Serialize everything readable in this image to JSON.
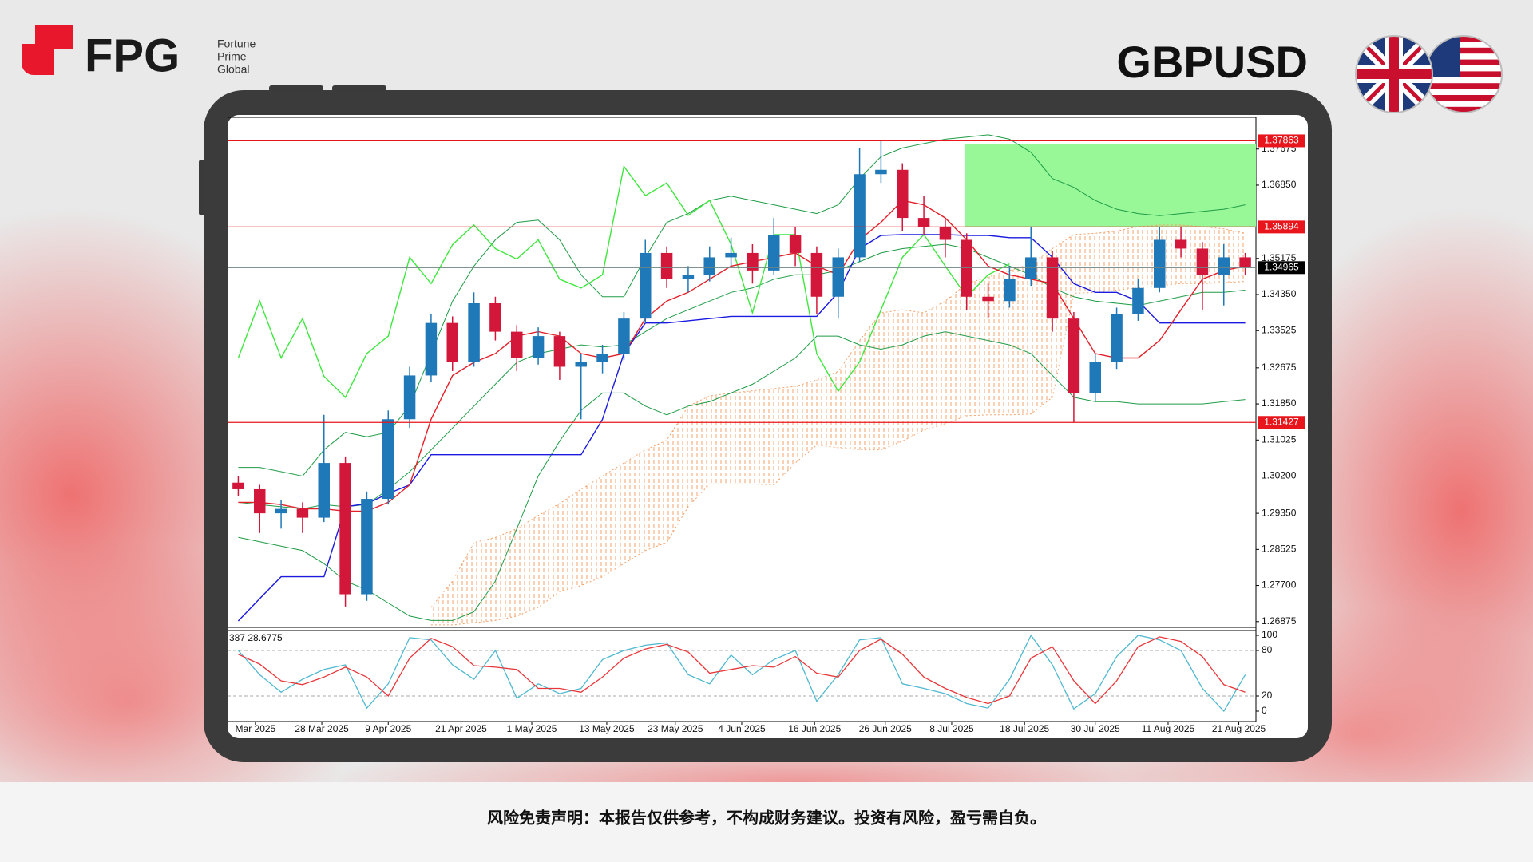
{
  "header": {
    "brand": "FPG",
    "tagline": [
      "Fortune",
      "Prime",
      "Global"
    ],
    "symbol": "GBPUSD"
  },
  "chart_data": {
    "type": "candlestick",
    "ylim": [
      1.2678,
      1.384
    ],
    "yticks": [
      1.37675,
      {
        "value": 1.3685,
        "label": "1.36850"
      },
      1.35175,
      {
        "value": 1.3435,
        "label": "1.34350"
      },
      1.33525,
      1.32675,
      {
        "value": 1.3185,
        "label": "1.31850"
      },
      1.31025,
      {
        "value": 1.302,
        "label": "1.30200"
      },
      {
        "value": 1.2935,
        "label": "1.29350"
      },
      1.28525,
      {
        "value": 1.277,
        "label": "1.27700"
      },
      1.26875
    ],
    "xticks": [
      {
        "value": 0.8,
        "label": "Mar 2025"
      },
      {
        "value": 3.9,
        "label": "28 Mar 2025"
      },
      {
        "value": 7.0,
        "label": "9 Apr 2025"
      },
      {
        "value": 10.4,
        "label": "21 Apr 2025"
      },
      {
        "value": 13.7,
        "label": "1 May 2025"
      },
      {
        "value": 17.2,
        "label": "13 May 2025"
      },
      {
        "value": 20.4,
        "label": "23 May 2025"
      },
      {
        "value": 23.5,
        "label": "4 Jun 2025"
      },
      {
        "value": 26.9,
        "label": "16 Jun 2025"
      },
      {
        "value": 30.2,
        "label": "26 Jun 2025"
      },
      {
        "value": 33.3,
        "label": "8 Jul 2025"
      },
      {
        "value": 36.7,
        "label": "18 Jul 2025"
      },
      {
        "value": 40.0,
        "label": "30 Jul 2025"
      },
      {
        "value": 43.4,
        "label": "11 Aug 2025"
      },
      {
        "value": 46.7,
        "label": "21 Aug 2025"
      }
    ],
    "up_color": "#1f78b8",
    "down_color": "#d3173a",
    "candles": [
      [
        1.3005,
        1.302,
        1.2975,
        1.299
      ],
      [
        1.299,
        1.3,
        1.289,
        1.2935
      ],
      [
        1.2935,
        1.2965,
        1.29,
        1.2945
      ],
      [
        1.2945,
        1.296,
        1.289,
        1.2925
      ],
      [
        1.2925,
        1.316,
        1.2915,
        1.305
      ],
      [
        1.305,
        1.3065,
        1.2722,
        1.275
      ],
      [
        1.275,
        1.2985,
        1.2735,
        1.2968
      ],
      [
        1.2968,
        1.317,
        1.2955,
        1.315
      ],
      [
        1.315,
        1.327,
        1.313,
        1.325
      ],
      [
        1.325,
        1.339,
        1.3235,
        1.337
      ],
      [
        1.337,
        1.3385,
        1.326,
        1.328
      ],
      [
        1.328,
        1.344,
        1.327,
        1.3415
      ],
      [
        1.3415,
        1.343,
        1.333,
        1.335
      ],
      [
        1.335,
        1.3365,
        1.326,
        1.329
      ],
      [
        1.329,
        1.336,
        1.3275,
        1.334
      ],
      [
        1.334,
        1.335,
        1.324,
        1.327
      ],
      [
        1.327,
        1.33,
        1.315,
        1.328
      ],
      [
        1.328,
        1.332,
        1.3255,
        1.33
      ],
      [
        1.33,
        1.3395,
        1.3285,
        1.338
      ],
      [
        1.338,
        1.356,
        1.337,
        1.353
      ],
      [
        1.353,
        1.3545,
        1.345,
        1.347
      ],
      [
        1.347,
        1.35,
        1.344,
        1.348
      ],
      [
        1.348,
        1.3545,
        1.3465,
        1.352
      ],
      [
        1.352,
        1.3565,
        1.35,
        1.353
      ],
      [
        1.353,
        1.355,
        1.346,
        1.349
      ],
      [
        1.349,
        1.361,
        1.348,
        1.357
      ],
      [
        1.357,
        1.359,
        1.35,
        1.353
      ],
      [
        1.353,
        1.3545,
        1.339,
        1.343
      ],
      [
        1.343,
        1.354,
        1.338,
        1.352
      ],
      [
        1.352,
        1.377,
        1.351,
        1.371
      ],
      [
        1.371,
        1.3786,
        1.369,
        1.372
      ],
      [
        1.372,
        1.3735,
        1.358,
        1.361
      ],
      [
        1.361,
        1.366,
        1.357,
        1.359
      ],
      [
        1.359,
        1.361,
        1.352,
        1.356
      ],
      [
        1.356,
        1.3575,
        1.34,
        1.343
      ],
      [
        1.343,
        1.346,
        1.338,
        1.342
      ],
      [
        1.342,
        1.35,
        1.3405,
        1.347
      ],
      [
        1.347,
        1.359,
        1.3455,
        1.352
      ],
      [
        1.352,
        1.3535,
        1.335,
        1.338
      ],
      [
        1.338,
        1.3395,
        1.3142,
        1.321
      ],
      [
        1.321,
        1.33,
        1.319,
        1.328
      ],
      [
        1.328,
        1.3405,
        1.3265,
        1.339
      ],
      [
        1.339,
        1.347,
        1.3375,
        1.345
      ],
      [
        1.345,
        1.359,
        1.344,
        1.356
      ],
      [
        1.356,
        1.359,
        1.352,
        1.354
      ],
      [
        1.354,
        1.3555,
        1.34,
        1.348
      ],
      [
        1.348,
        1.355,
        1.341,
        1.352
      ],
      [
        1.352,
        1.353,
        1.348,
        1.3497
      ]
    ],
    "zone": {
      "low": 1.35894,
      "high": 1.3778,
      "start": 33.9,
      "color": "#98f898"
    },
    "cloud": {
      "color": "#f2a36c",
      "upper": [
        null,
        null,
        null,
        null,
        null,
        null,
        null,
        null,
        null,
        1.272,
        1.278,
        1.2868,
        1.288,
        1.29,
        1.293,
        1.2957,
        1.299,
        1.302,
        1.305,
        1.308,
        1.3102,
        1.318,
        1.3203,
        1.321,
        1.3215,
        1.322,
        1.3225,
        1.324,
        1.3259,
        1.333,
        1.3393,
        1.34,
        1.3393,
        1.342,
        1.346,
        1.3475,
        1.349,
        1.3505,
        1.354,
        1.3572,
        1.3575,
        1.358,
        1.359,
        1.3594,
        1.3594,
        1.359,
        1.3585,
        1.3575
      ],
      "lower": [
        null,
        null,
        null,
        null,
        null,
        null,
        null,
        null,
        null,
        1.268,
        1.268,
        1.2685,
        1.269,
        1.27,
        1.272,
        1.2756,
        1.277,
        1.279,
        1.282,
        1.285,
        1.2868,
        1.295,
        1.3002,
        1.3002,
        1.3002,
        1.3,
        1.305,
        1.3091,
        1.3085,
        1.308,
        1.308,
        1.31,
        1.3125,
        1.314,
        1.3158,
        1.316,
        1.316,
        1.3162,
        1.32,
        1.3438,
        1.344,
        1.3445,
        1.345,
        1.3455,
        1.346,
        1.346,
        1.3462,
        1.3465
      ]
    },
    "lines": [
      {
        "color": "#1e9c46",
        "width": 1,
        "values": [
          1.304,
          1.304,
          1.303,
          1.302,
          1.308,
          1.312,
          1.311,
          1.312,
          1.318,
          1.33,
          1.342,
          1.35,
          1.356,
          1.36,
          1.3605,
          1.356,
          1.348,
          1.343,
          1.343,
          1.352,
          1.36,
          1.362,
          1.365,
          1.366,
          1.365,
          1.364,
          1.363,
          1.362,
          1.364,
          1.37,
          1.375,
          1.377,
          1.378,
          1.379,
          1.3795,
          1.38,
          1.379,
          1.376,
          1.37,
          1.368,
          1.365,
          1.363,
          1.362,
          1.3615,
          1.362,
          1.3625,
          1.363,
          1.364
        ]
      },
      {
        "color": "#1e9c46",
        "width": 1,
        "values": [
          1.296,
          1.2955,
          1.295,
          1.2945,
          1.2955,
          1.295,
          1.2955,
          1.299,
          1.303,
          1.308,
          1.313,
          1.318,
          1.323,
          1.328,
          1.33,
          1.331,
          1.332,
          1.3315,
          1.332,
          1.335,
          1.338,
          1.34,
          1.342,
          1.344,
          1.345,
          1.347,
          1.348,
          1.348,
          1.349,
          1.351,
          1.353,
          1.354,
          1.3545,
          1.355,
          1.354,
          1.352,
          1.35,
          1.348,
          1.345,
          1.343,
          1.342,
          1.3415,
          1.341,
          1.342,
          1.343,
          1.344,
          1.344,
          1.3445
        ]
      },
      {
        "color": "#1e9c46",
        "width": 1,
        "values": [
          1.288,
          1.287,
          1.286,
          1.285,
          1.282,
          1.278,
          1.276,
          1.273,
          1.27,
          1.269,
          1.269,
          1.271,
          1.278,
          1.29,
          1.302,
          1.31,
          1.317,
          1.321,
          1.321,
          1.318,
          1.316,
          1.318,
          1.319,
          1.321,
          1.323,
          1.326,
          1.329,
          1.334,
          1.334,
          1.332,
          1.331,
          1.332,
          1.334,
          1.335,
          1.334,
          1.333,
          1.332,
          1.33,
          1.325,
          1.32,
          1.319,
          1.319,
          1.3185,
          1.3185,
          1.3185,
          1.3185,
          1.319,
          1.3195
        ]
      },
      {
        "color": "#3de83d",
        "width": 1.4,
        "values": [
          1.329,
          1.342,
          1.329,
          1.338,
          1.3248,
          1.32,
          1.33,
          1.334,
          1.352,
          1.346,
          1.3549,
          1.3594,
          1.354,
          1.3516,
          1.356,
          1.347,
          1.345,
          1.348,
          1.3728,
          1.3661,
          1.369,
          1.3616,
          1.365,
          1.355,
          1.3393,
          1.3572,
          1.3572,
          1.33,
          1.3214,
          1.3281,
          1.34,
          1.352,
          1.3572,
          1.35,
          1.343,
          1.348,
          1.3505,
          null,
          null,
          null,
          null,
          null,
          null,
          null,
          null,
          null,
          null,
          null
        ]
      },
      {
        "color": "#1a1ae0",
        "width": 1.4,
        "values": [
          1.2689,
          1.274,
          1.279,
          1.279,
          1.279,
          1.295,
          1.2957,
          1.298,
          1.3,
          1.3069,
          1.3069,
          1.3069,
          1.3069,
          1.3069,
          1.3069,
          1.3069,
          1.3069,
          1.315,
          1.33,
          1.337,
          1.337,
          1.3375,
          1.338,
          1.3385,
          1.3385,
          1.3385,
          1.3385,
          1.3385,
          1.344,
          1.354,
          1.357,
          1.3572,
          1.3572,
          1.3572,
          1.357,
          1.357,
          1.3565,
          1.3565,
          1.352,
          1.346,
          1.344,
          1.344,
          1.342,
          1.337,
          1.337,
          1.337,
          1.337,
          1.337
        ]
      },
      {
        "color": "#e3202a",
        "width": 1.4,
        "values": [
          1.296,
          1.296,
          1.2955,
          1.2945,
          1.2945,
          1.294,
          1.294,
          1.296,
          1.3,
          1.315,
          1.325,
          1.328,
          1.33,
          1.334,
          1.335,
          1.334,
          1.33,
          1.329,
          1.33,
          1.338,
          1.342,
          1.344,
          1.347,
          1.35,
          1.351,
          1.352,
          1.353,
          1.35,
          1.348,
          1.356,
          1.36,
          1.365,
          1.364,
          1.361,
          1.356,
          1.35,
          1.348,
          1.347,
          1.346,
          1.338,
          1.33,
          1.329,
          1.329,
          1.333,
          1.34,
          1.347,
          1.349,
          1.35
        ]
      }
    ],
    "levels": [
      {
        "value": 1.37863,
        "color": "#e8161c",
        "label_color": "#e8161c"
      },
      {
        "value": 1.35894,
        "color": "#e8161c",
        "label_color": "#e8161c"
      },
      {
        "value": 1.31427,
        "color": "#e8161c",
        "label_color": "#e8161c"
      },
      {
        "value": 1.34965,
        "color": "#6f8383",
        "label_color": "#000000"
      }
    ],
    "oscillator": {
      "label": "387 28.6775",
      "ylim": [
        0,
        100
      ],
      "yticks": [
        100,
        80,
        20,
        0
      ],
      "levels": [
        80,
        20
      ],
      "lines": [
        {
          "color": "#4fb8d0",
          "values": [
            80,
            48,
            25,
            42,
            55,
            61,
            4,
            36,
            97,
            94,
            61,
            42,
            80,
            17,
            36,
            23,
            30,
            68,
            80,
            87,
            90,
            48,
            36,
            74,
            48,
            68,
            80,
            13,
            48,
            94,
            97,
            36,
            30,
            23,
            10,
            4,
            42,
            100,
            61,
            3,
            23,
            72,
            100,
            94,
            80,
            30,
            0,
            48
          ]
        },
        {
          "color": "#e8373a",
          "values": [
            75,
            62,
            40,
            35,
            45,
            58,
            45,
            20,
            70,
            96,
            85,
            60,
            58,
            55,
            30,
            30,
            25,
            45,
            70,
            82,
            88,
            78,
            50,
            55,
            60,
            58,
            72,
            50,
            45,
            80,
            95,
            75,
            45,
            30,
            18,
            10,
            20,
            70,
            85,
            40,
            10,
            40,
            85,
            98,
            92,
            72,
            35,
            25
          ]
        }
      ]
    }
  },
  "footer": {
    "disclaimer": "风险免责声明：本报告仅供参考，不构成财务建议。投资有风险，盈亏需自负。"
  }
}
